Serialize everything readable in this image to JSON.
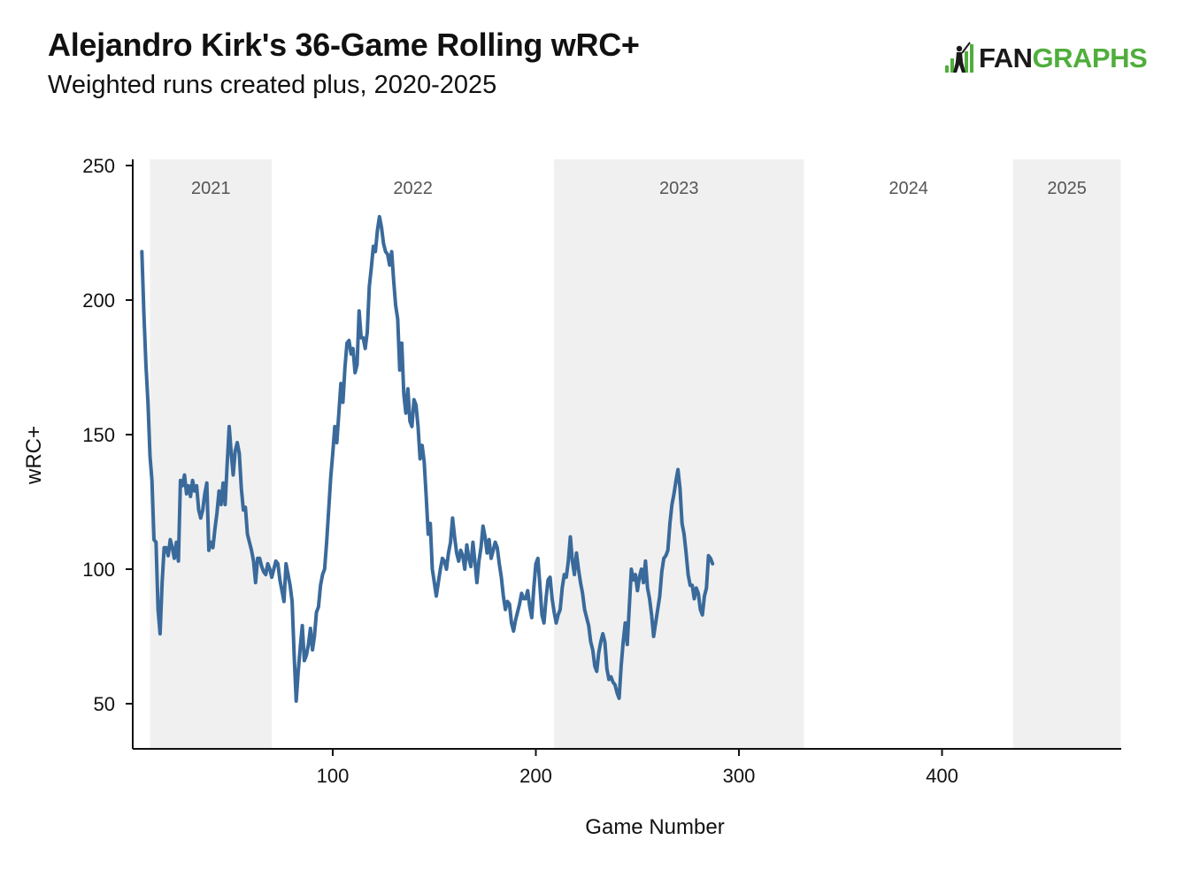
{
  "header": {
    "title": "Alejandro Kirk's 36-Game Rolling wRC+",
    "subtitle": "Weighted runs created plus, 2020-2025"
  },
  "logo": {
    "text_prefix": "FAN",
    "text_accent": "GRAPHS",
    "accent_color": "#50ae3c"
  },
  "colors": {
    "line": "#3a6a9b",
    "band": "#f0f0f0",
    "axis": "#111111"
  },
  "chart_data": {
    "type": "line",
    "title": "Alejandro Kirk's 36-Game Rolling wRC+",
    "subtitle": "Weighted runs created plus, 2020-2025",
    "xlabel": "Game Number",
    "ylabel": "wRC+",
    "xlim": [
      1,
      488
    ],
    "ylim": [
      33,
      253
    ],
    "xticks": [
      100,
      200,
      300,
      400
    ],
    "yticks": [
      50,
      100,
      150,
      200,
      250
    ],
    "season_bands": [
      {
        "label": "2021",
        "start": 10,
        "end": 70,
        "shaded": true
      },
      {
        "label": "2022",
        "start": 70,
        "end": 209,
        "shaded": false
      },
      {
        "label": "2023",
        "start": 209,
        "end": 332,
        "shaded": true
      },
      {
        "label": "2024",
        "start": 332,
        "end": 435,
        "shaded": false
      },
      {
        "label": "2025",
        "start": 435,
        "end": 488,
        "shaded": true
      }
    ],
    "series": [
      {
        "name": "36-Game Rolling wRC+",
        "points": [
          [
            6,
            218
          ],
          [
            7,
            195
          ],
          [
            8,
            176
          ],
          [
            9,
            162
          ],
          [
            10,
            142
          ],
          [
            11,
            133
          ],
          [
            12,
            111
          ],
          [
            13,
            110
          ],
          [
            14,
            85
          ],
          [
            15,
            76
          ],
          [
            16,
            95
          ],
          [
            17,
            108
          ],
          [
            18,
            108
          ],
          [
            19,
            105
          ],
          [
            20,
            111
          ],
          [
            21,
            108
          ],
          [
            22,
            104
          ],
          [
            23,
            110
          ],
          [
            24,
            103
          ],
          [
            25,
            133
          ],
          [
            26,
            131
          ],
          [
            27,
            135
          ],
          [
            28,
            128
          ],
          [
            29,
            131
          ],
          [
            30,
            127
          ],
          [
            31,
            133
          ],
          [
            32,
            129
          ],
          [
            33,
            131
          ],
          [
            34,
            122
          ],
          [
            35,
            119
          ],
          [
            36,
            122
          ],
          [
            37,
            128
          ],
          [
            38,
            132
          ],
          [
            39,
            107
          ],
          [
            40,
            110
          ],
          [
            41,
            108
          ],
          [
            42,
            115
          ],
          [
            43,
            121
          ],
          [
            44,
            129
          ],
          [
            45,
            124
          ],
          [
            46,
            132
          ],
          [
            47,
            124
          ],
          [
            48,
            139
          ],
          [
            49,
            153
          ],
          [
            50,
            143
          ],
          [
            51,
            135
          ],
          [
            52,
            144
          ],
          [
            53,
            147
          ],
          [
            54,
            143
          ],
          [
            55,
            130
          ],
          [
            56,
            122
          ],
          [
            57,
            123
          ],
          [
            58,
            113
          ],
          [
            59,
            110
          ],
          [
            60,
            107
          ],
          [
            61,
            103
          ],
          [
            62,
            95
          ],
          [
            63,
            104
          ],
          [
            64,
            104
          ],
          [
            65,
            101
          ],
          [
            66,
            99
          ],
          [
            67,
            98
          ],
          [
            68,
            102
          ],
          [
            69,
            100
          ],
          [
            70,
            97
          ],
          [
            71,
            100
          ],
          [
            72,
            103
          ],
          [
            73,
            102
          ],
          [
            74,
            96
          ],
          [
            75,
            92
          ],
          [
            76,
            88
          ],
          [
            77,
            102
          ],
          [
            78,
            98
          ],
          [
            79,
            94
          ],
          [
            80,
            88
          ],
          [
            81,
            68
          ],
          [
            82,
            51
          ],
          [
            83,
            62
          ],
          [
            84,
            71
          ],
          [
            85,
            79
          ],
          [
            86,
            66
          ],
          [
            87,
            68
          ],
          [
            88,
            72
          ],
          [
            89,
            78
          ],
          [
            90,
            70
          ],
          [
            91,
            75
          ],
          [
            92,
            84
          ],
          [
            93,
            86
          ],
          [
            94,
            94
          ],
          [
            95,
            98
          ],
          [
            96,
            100
          ],
          [
            97,
            110
          ],
          [
            98,
            122
          ],
          [
            99,
            134
          ],
          [
            100,
            143
          ],
          [
            101,
            153
          ],
          [
            102,
            147
          ],
          [
            103,
            158
          ],
          [
            104,
            169
          ],
          [
            105,
            162
          ],
          [
            106,
            175
          ],
          [
            107,
            184
          ],
          [
            108,
            185
          ],
          [
            109,
            180
          ],
          [
            110,
            182
          ],
          [
            111,
            173
          ],
          [
            112,
            176
          ],
          [
            113,
            196
          ],
          [
            114,
            186
          ],
          [
            115,
            186
          ],
          [
            116,
            182
          ],
          [
            117,
            188
          ],
          [
            118,
            205
          ],
          [
            119,
            212
          ],
          [
            120,
            220
          ],
          [
            121,
            218
          ],
          [
            122,
            226
          ],
          [
            123,
            231
          ],
          [
            124,
            227
          ],
          [
            125,
            221
          ],
          [
            126,
            218
          ],
          [
            127,
            217
          ],
          [
            128,
            213
          ],
          [
            129,
            218
          ],
          [
            130,
            207
          ],
          [
            131,
            198
          ],
          [
            132,
            193
          ],
          [
            133,
            174
          ],
          [
            134,
            184
          ],
          [
            135,
            165
          ],
          [
            136,
            158
          ],
          [
            137,
            167
          ],
          [
            138,
            155
          ],
          [
            139,
            153
          ],
          [
            140,
            163
          ],
          [
            141,
            161
          ],
          [
            142,
            153
          ],
          [
            143,
            141
          ],
          [
            144,
            146
          ],
          [
            145,
            140
          ],
          [
            146,
            127
          ],
          [
            147,
            113
          ],
          [
            148,
            117
          ],
          [
            149,
            100
          ],
          [
            150,
            95
          ],
          [
            151,
            90
          ],
          [
            152,
            95
          ],
          [
            153,
            100
          ],
          [
            154,
            104
          ],
          [
            155,
            103
          ],
          [
            156,
            100
          ],
          [
            157,
            106
          ],
          [
            158,
            110
          ],
          [
            159,
            119
          ],
          [
            160,
            112
          ],
          [
            161,
            106
          ],
          [
            162,
            103
          ],
          [
            163,
            107
          ],
          [
            164,
            105
          ],
          [
            165,
            100
          ],
          [
            166,
            109
          ],
          [
            167,
            104
          ],
          [
            168,
            101
          ],
          [
            169,
            110
          ],
          [
            170,
            103
          ],
          [
            171,
            95
          ],
          [
            172,
            103
          ],
          [
            173,
            108
          ],
          [
            174,
            116
          ],
          [
            175,
            112
          ],
          [
            176,
            106
          ],
          [
            177,
            111
          ],
          [
            178,
            104
          ],
          [
            179,
            107
          ],
          [
            180,
            110
          ],
          [
            181,
            108
          ],
          [
            182,
            102
          ],
          [
            183,
            97
          ],
          [
            184,
            90
          ],
          [
            185,
            85
          ],
          [
            186,
            88
          ],
          [
            187,
            87
          ],
          [
            188,
            80
          ],
          [
            189,
            77
          ],
          [
            190,
            81
          ],
          [
            191,
            84
          ],
          [
            192,
            87
          ],
          [
            193,
            91
          ],
          [
            194,
            89
          ],
          [
            195,
            89
          ],
          [
            196,
            92
          ],
          [
            197,
            86
          ],
          [
            198,
            82
          ],
          [
            199,
            93
          ],
          [
            200,
            102
          ],
          [
            201,
            104
          ],
          [
            202,
            94
          ],
          [
            203,
            83
          ],
          [
            204,
            80
          ],
          [
            205,
            89
          ],
          [
            206,
            96
          ],
          [
            207,
            97
          ],
          [
            208,
            89
          ],
          [
            209,
            84
          ],
          [
            210,
            80
          ],
          [
            211,
            83
          ],
          [
            212,
            85
          ],
          [
            213,
            93
          ],
          [
            214,
            98
          ],
          [
            215,
            97
          ],
          [
            216,
            103
          ],
          [
            217,
            112
          ],
          [
            218,
            103
          ],
          [
            219,
            98
          ],
          [
            220,
            106
          ],
          [
            221,
            100
          ],
          [
            222,
            95
          ],
          [
            223,
            91
          ],
          [
            224,
            85
          ],
          [
            225,
            82
          ],
          [
            226,
            79
          ],
          [
            227,
            73
          ],
          [
            228,
            70
          ],
          [
            229,
            64
          ],
          [
            230,
            62
          ],
          [
            231,
            69
          ],
          [
            232,
            73
          ],
          [
            233,
            76
          ],
          [
            234,
            73
          ],
          [
            235,
            63
          ],
          [
            236,
            59
          ],
          [
            237,
            60
          ],
          [
            238,
            58
          ],
          [
            239,
            57
          ],
          [
            240,
            54
          ],
          [
            241,
            52
          ],
          [
            242,
            64
          ],
          [
            243,
            73
          ],
          [
            244,
            80
          ],
          [
            245,
            72
          ],
          [
            246,
            86
          ],
          [
            247,
            100
          ],
          [
            248,
            96
          ],
          [
            249,
            98
          ],
          [
            250,
            92
          ],
          [
            251,
            97
          ],
          [
            252,
            100
          ],
          [
            253,
            95
          ],
          [
            254,
            103
          ],
          [
            255,
            93
          ],
          [
            256,
            89
          ],
          [
            257,
            83
          ],
          [
            258,
            75
          ],
          [
            259,
            80
          ],
          [
            260,
            85
          ],
          [
            261,
            90
          ],
          [
            262,
            99
          ],
          [
            263,
            104
          ],
          [
            264,
            105
          ],
          [
            265,
            107
          ],
          [
            266,
            117
          ],
          [
            267,
            124
          ],
          [
            268,
            128
          ],
          [
            269,
            133
          ],
          [
            270,
            137
          ],
          [
            271,
            130
          ],
          [
            272,
            117
          ],
          [
            273,
            113
          ],
          [
            274,
            106
          ],
          [
            275,
            98
          ],
          [
            276,
            94
          ],
          [
            277,
            94
          ],
          [
            278,
            89
          ],
          [
            279,
            93
          ],
          [
            280,
            91
          ],
          [
            281,
            85
          ],
          [
            282,
            83
          ],
          [
            283,
            90
          ],
          [
            284,
            93
          ],
          [
            285,
            105
          ],
          [
            286,
            104
          ],
          [
            287,
            102
          ]
        ]
      }
    ]
  },
  "layout_note": ""
}
